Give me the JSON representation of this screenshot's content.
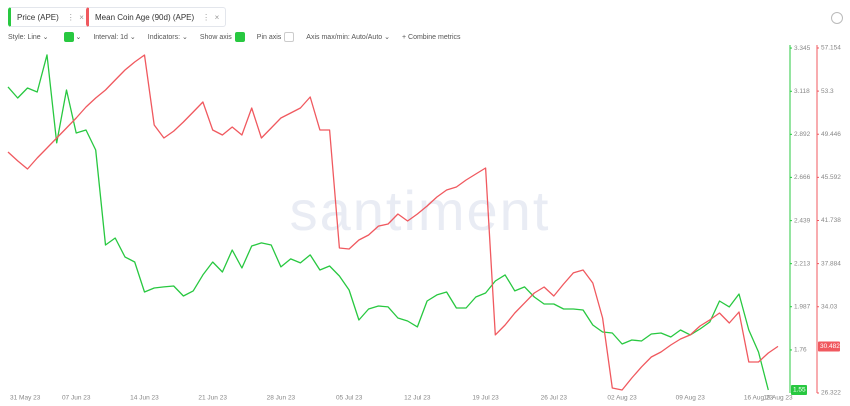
{
  "toolbar": {
    "style": "Style: Line",
    "interval": "Interval: 1d",
    "indicators": "Indicators:",
    "show_axis": "Show axis",
    "pin_axis": "Pin axis",
    "axis_minmax": "Axis max/min: Auto/Auto",
    "combine": "Combine metrics"
  },
  "chart_data": {
    "type": "line",
    "watermark": "santiment",
    "categories": [
      "31 May 23",
      null,
      null,
      null,
      null,
      null,
      null,
      "07 Jun 23",
      null,
      null,
      null,
      null,
      null,
      null,
      "14 Jun 23",
      null,
      null,
      null,
      null,
      null,
      null,
      "21 Jun 23",
      null,
      null,
      null,
      null,
      null,
      null,
      "28 Jun 23",
      null,
      null,
      null,
      null,
      null,
      null,
      "05 Jul 23",
      null,
      null,
      null,
      null,
      null,
      null,
      "12 Jul 23",
      null,
      null,
      null,
      null,
      null,
      null,
      "19 Jul 23",
      null,
      null,
      null,
      null,
      null,
      null,
      "26 Jul 23",
      null,
      null,
      null,
      null,
      null,
      null,
      "02 Aug 23",
      null,
      null,
      null,
      null,
      null,
      null,
      "09 Aug 23",
      null,
      null,
      null,
      null,
      null,
      null,
      "16 Aug 23",
      null,
      "18 Aug 23"
    ],
    "series": [
      {
        "name": "Price (APE)",
        "color": "#28c840",
        "axis": "y",
        "values": [
          3.141,
          3.083,
          3.135,
          3.114,
          3.309,
          2.847,
          3.125,
          2.899,
          2.915,
          2.81,
          2.311,
          2.348,
          2.248,
          2.222,
          2.064,
          2.085,
          2.091,
          2.096,
          2.043,
          2.07,
          2.154,
          2.222,
          2.169,
          2.285,
          2.19,
          2.306,
          2.322,
          2.311,
          2.196,
          2.238,
          2.217,
          2.259,
          2.18,
          2.201,
          2.148,
          2.075,
          1.917,
          1.975,
          1.991,
          1.986,
          1.928,
          1.912,
          1.881,
          2.017,
          2.049,
          2.064,
          1.98,
          1.98,
          2.038,
          2.059,
          2.122,
          2.154,
          2.07,
          2.091,
          2.038,
          2.001,
          2.001,
          1.975,
          1.975,
          1.97,
          1.891,
          1.854,
          1.849,
          1.791,
          1.812,
          1.807,
          1.844,
          1.849,
          1.828,
          1.865,
          1.839,
          1.87,
          1.907,
          2.017,
          1.986,
          2.054,
          1.865,
          1.749,
          1.55,
          null
        ]
      },
      {
        "name": "Mean Coin Age (90d) (APE)",
        "color": "#f0595f",
        "axis": "y2",
        "values": [
          47.86,
          47.06,
          46.34,
          47.32,
          48.22,
          49.11,
          50.0,
          50.9,
          51.88,
          52.68,
          53.4,
          54.29,
          55.19,
          55.9,
          56.53,
          50.27,
          49.11,
          49.73,
          50.54,
          51.43,
          52.33,
          49.82,
          49.38,
          50.09,
          49.38,
          51.79,
          49.11,
          50.0,
          50.9,
          51.34,
          51.79,
          52.77,
          49.82,
          49.82,
          39.28,
          39.19,
          39.99,
          40.44,
          41.24,
          41.42,
          42.32,
          41.69,
          42.32,
          43.03,
          43.84,
          44.46,
          44.73,
          45.36,
          45.89,
          46.43,
          31.51,
          32.4,
          33.47,
          34.37,
          35.26,
          35.79,
          34.99,
          36.06,
          37.05,
          37.31,
          36.15,
          33.02,
          26.77,
          26.59,
          27.66,
          28.65,
          29.54,
          29.99,
          30.61,
          31.15,
          31.51,
          32.31,
          32.85,
          33.47,
          32.58,
          33.56,
          29.09,
          29.09,
          29.9,
          30.482
        ]
      }
    ],
    "ylim": [
      1.534,
      3.361
    ],
    "yticks": [
      1.76,
      1.987,
      2.213,
      2.439,
      2.666,
      2.892,
      3.118,
      3.345
    ],
    "y2lim": [
      26.322,
      57.42
    ],
    "y2ticks": [
      26.322,
      34.03,
      37.884,
      41.738,
      45.592,
      49.446,
      53.3,
      57.154
    ],
    "grid": false
  }
}
